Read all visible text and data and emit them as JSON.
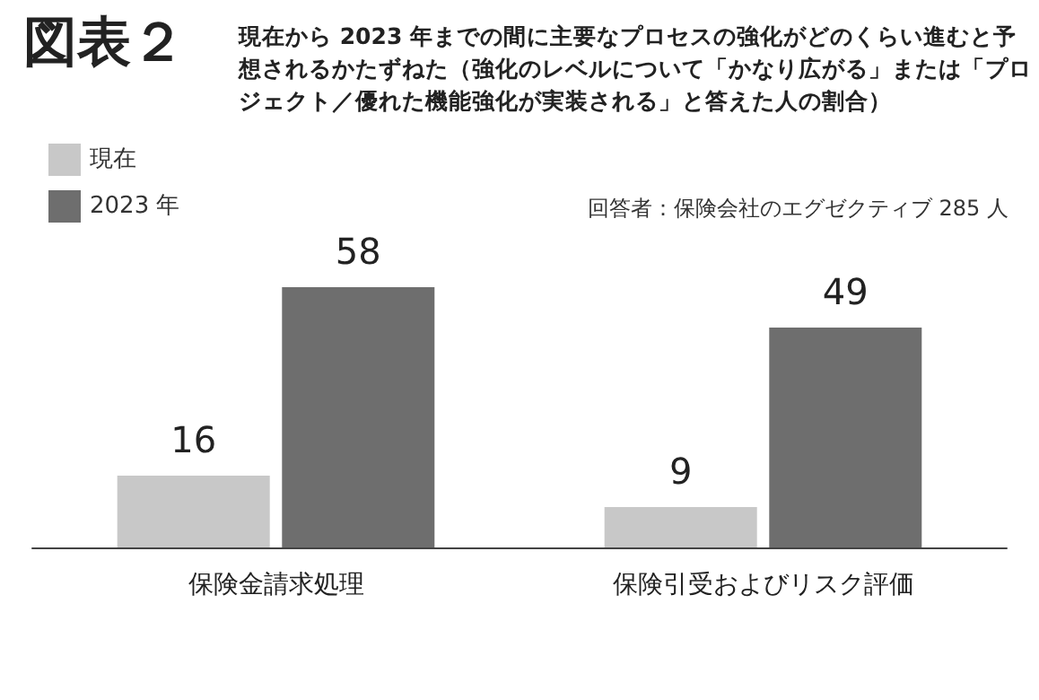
{
  "chart_data": {
    "type": "bar",
    "title": "図表２",
    "subtitle": "現在から 2023 年までの間に主要なプロセスの強化がどのくらい進むと予想されるかたずねた（強化のレベルについて「かなり広がる」または「プロジェクト／優れた機能強化が実装される」と答えた人の割合）",
    "categories": [
      "保険金請求処理",
      "保険引受およびリスク評価"
    ],
    "series": [
      {
        "name": "現在",
        "color": "#c8c8c8",
        "values": [
          16,
          9
        ]
      },
      {
        "name": "2023 年",
        "color": "#6e6e6e",
        "values": [
          58,
          49
        ]
      }
    ],
    "tick_labels": "x",
    "data_labels": true,
    "legend": "top left",
    "annotations": [
      "回答者：保険会社のエグゼクティブ 285 人"
    ]
  }
}
